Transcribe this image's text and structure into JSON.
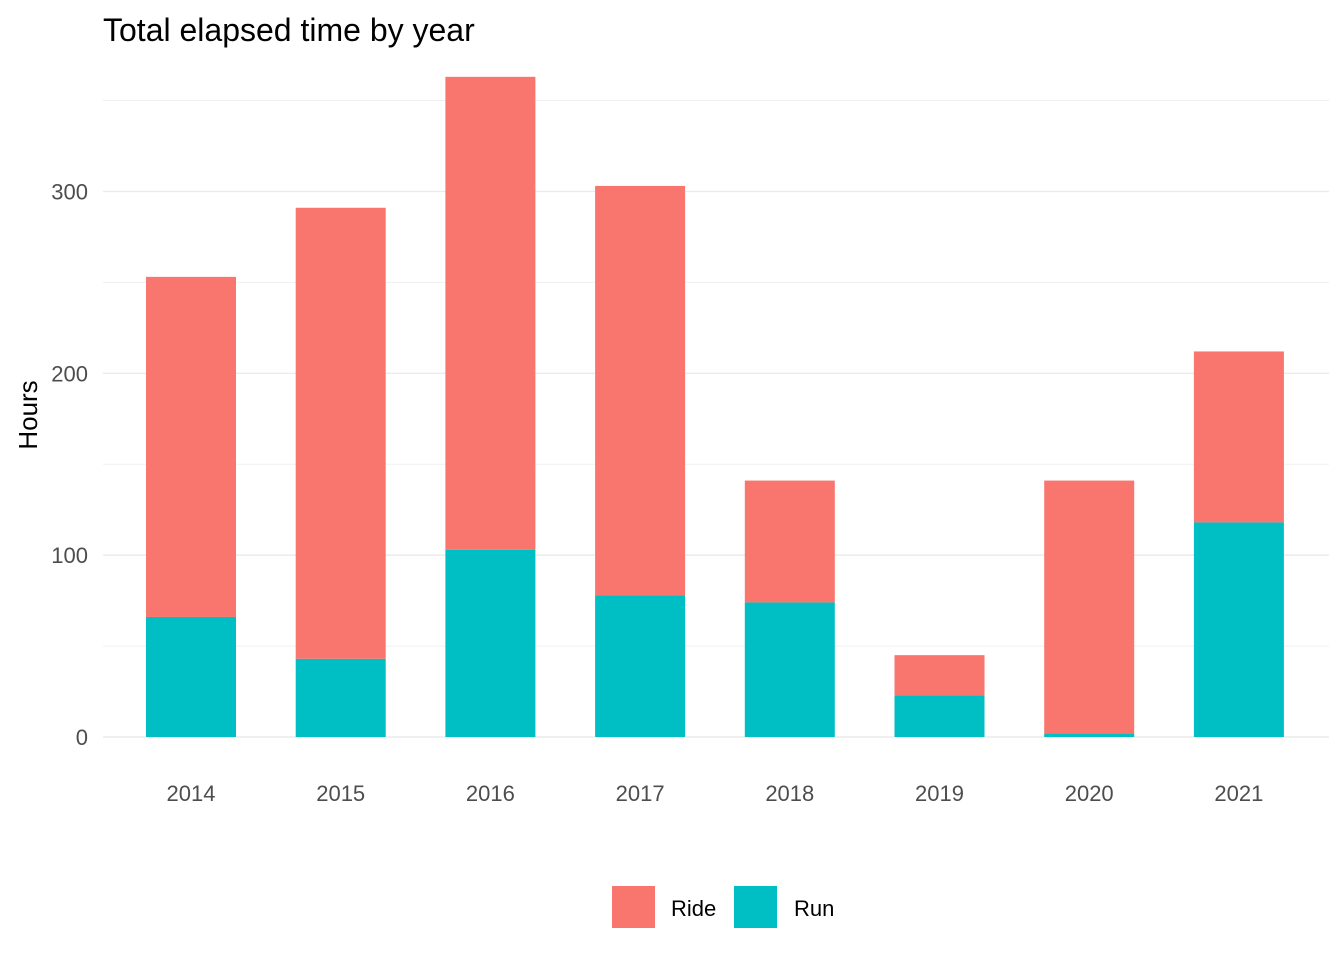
{
  "chart_data": {
    "type": "bar",
    "stacked": true,
    "title": "Total elapsed time by year",
    "xlabel": "",
    "ylabel": "Hours",
    "categories": [
      "2014",
      "2015",
      "2016",
      "2017",
      "2018",
      "2019",
      "2020",
      "2021"
    ],
    "series": [
      {
        "name": "Run",
        "color": "#00BFC4",
        "values": [
          66,
          43,
          103,
          78,
          74,
          23,
          2,
          118
        ]
      },
      {
        "name": "Ride",
        "color": "#F8766D",
        "values": [
          187,
          248,
          260,
          225,
          67,
          22,
          139,
          94
        ]
      }
    ],
    "totals": [
      253,
      291,
      363,
      303,
      141,
      45,
      141,
      212
    ],
    "ylim": [
      0,
      364
    ],
    "yticks": [
      0,
      100,
      200,
      300
    ],
    "grid": true,
    "legend_position": "bottom",
    "legend_order": [
      "Ride",
      "Run"
    ]
  }
}
